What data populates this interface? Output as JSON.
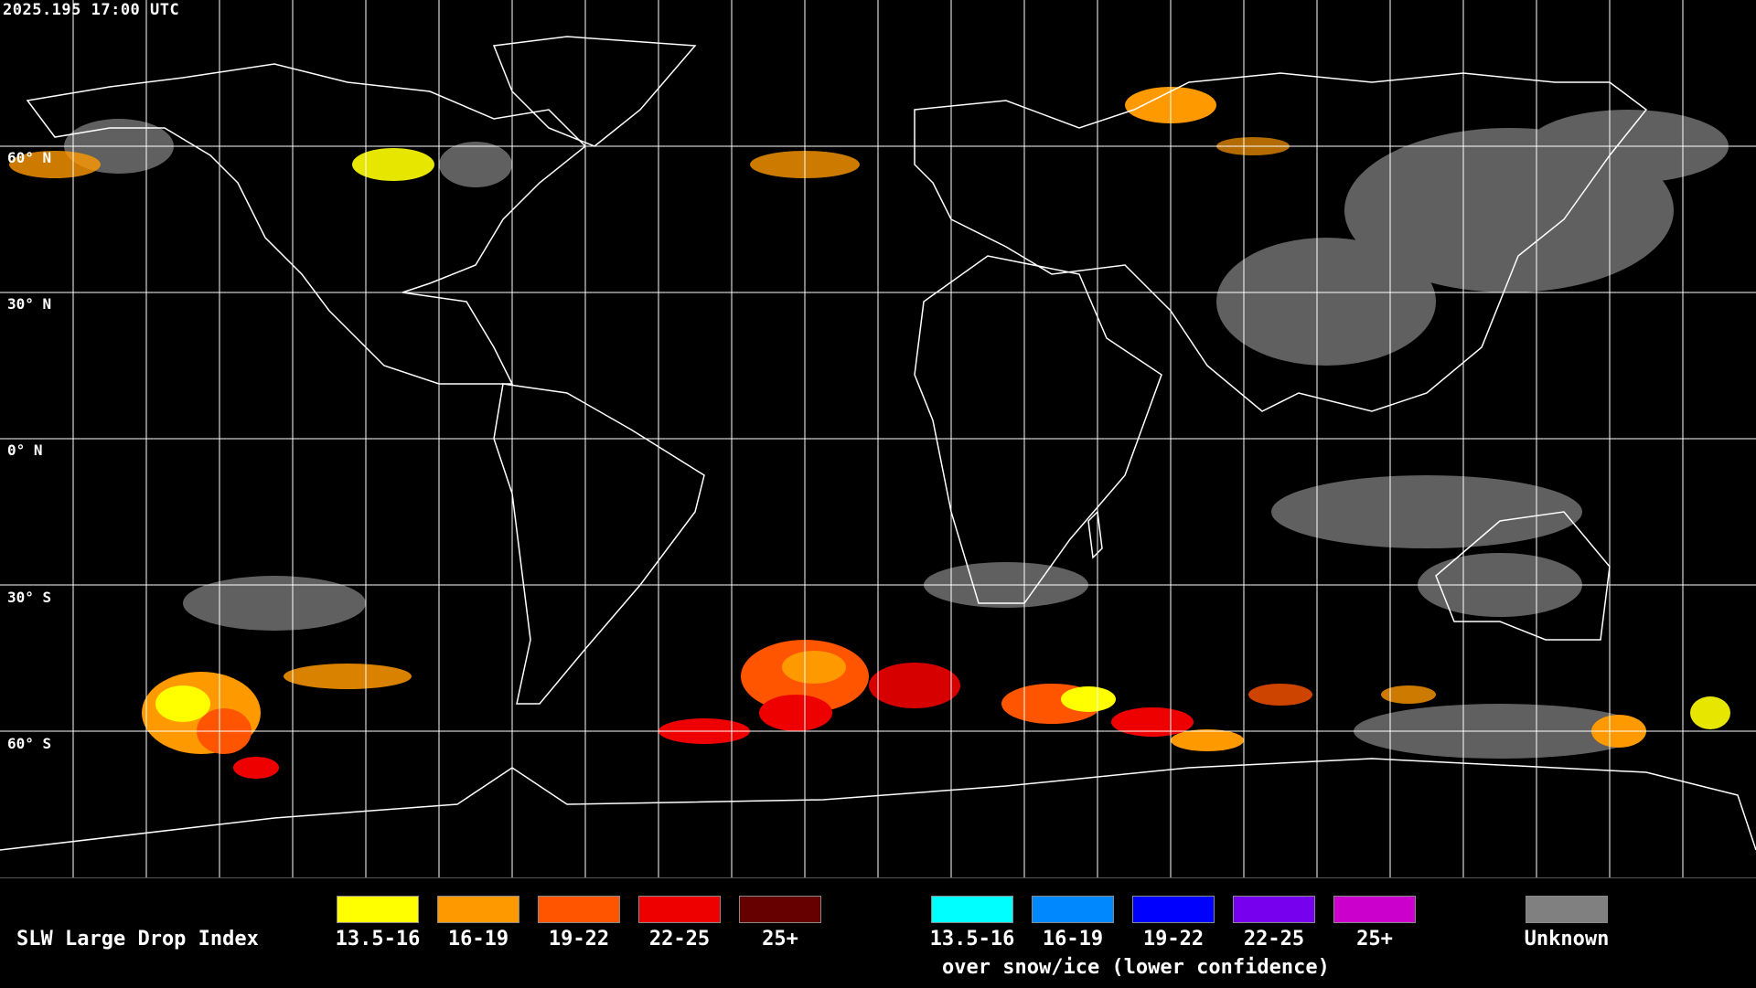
{
  "header": {
    "timestamp": "2025.195 17:00 UTC"
  },
  "map": {
    "lat_labels": [
      "60° N",
      "30° N",
      "0° N",
      "30° S",
      "60° S"
    ],
    "gridline_color": "#ffffff",
    "coastline_color": "#ffffff",
    "background": "#000000"
  },
  "legend": {
    "title": "SLW Large Drop Index",
    "main_scale": [
      {
        "label": "13.5-16",
        "color": "#ffff00"
      },
      {
        "label": "16-19",
        "color": "#ff9900"
      },
      {
        "label": "19-22",
        "color": "#ff5500"
      },
      {
        "label": "22-25",
        "color": "#ee0000"
      },
      {
        "label": "25+",
        "color": "#660000"
      }
    ],
    "snow_scale": [
      {
        "label": "13.5-16",
        "color": "#00ffff"
      },
      {
        "label": "16-19",
        "color": "#0088ff"
      },
      {
        "label": "19-22",
        "color": "#0000ff"
      },
      {
        "label": "22-25",
        "color": "#7700ee"
      },
      {
        "label": "25+",
        "color": "#cc00cc"
      }
    ],
    "snow_note": "over snow/ice (lower confidence)",
    "unknown": {
      "label": "Unknown",
      "color": "#808080"
    }
  }
}
